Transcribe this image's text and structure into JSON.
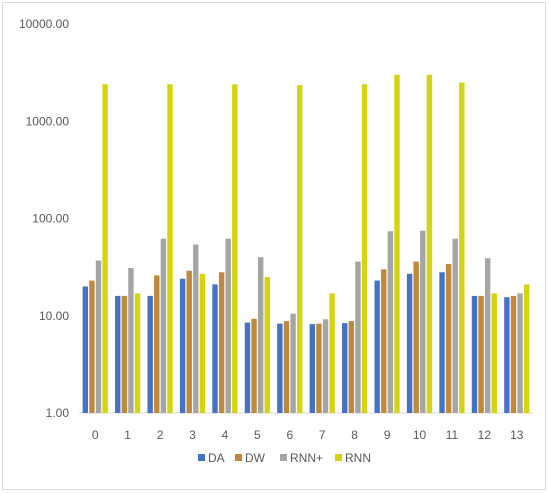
{
  "chart_data": {
    "type": "bar",
    "scale": "log",
    "ylim": [
      1,
      10000
    ],
    "y_ticks": [
      "1.00",
      "10.00",
      "100.00",
      "1000.00",
      "10000.00"
    ],
    "categories": [
      "0",
      "1",
      "2",
      "3",
      "4",
      "5",
      "6",
      "7",
      "8",
      "9",
      "10",
      "11",
      "12",
      "13"
    ],
    "series": [
      {
        "name": "DA",
        "color": "#4472c4",
        "values": [
          20,
          16,
          16,
          24,
          21,
          8.5,
          8.3,
          8.2,
          8.4,
          23,
          27,
          28,
          16,
          15.5
        ]
      },
      {
        "name": "DW",
        "color": "#c0883a",
        "values": [
          23,
          16,
          26,
          29,
          28,
          9.3,
          8.8,
          8.3,
          8.8,
          30,
          36,
          34,
          16,
          16
        ]
      },
      {
        "name": "RNN+",
        "color": "#a5a5a5",
        "values": [
          37,
          31,
          62,
          54,
          62,
          40,
          10.5,
          9.2,
          36,
          74,
          75,
          62,
          39,
          17
        ]
      },
      {
        "name": "RNN",
        "color": "#d4d40f",
        "values": [
          2400,
          17,
          2400,
          27,
          2400,
          25,
          2350,
          17,
          2400,
          3000,
          3000,
          2500,
          17,
          21
        ]
      }
    ],
    "grid": false,
    "legend": "bottom"
  }
}
